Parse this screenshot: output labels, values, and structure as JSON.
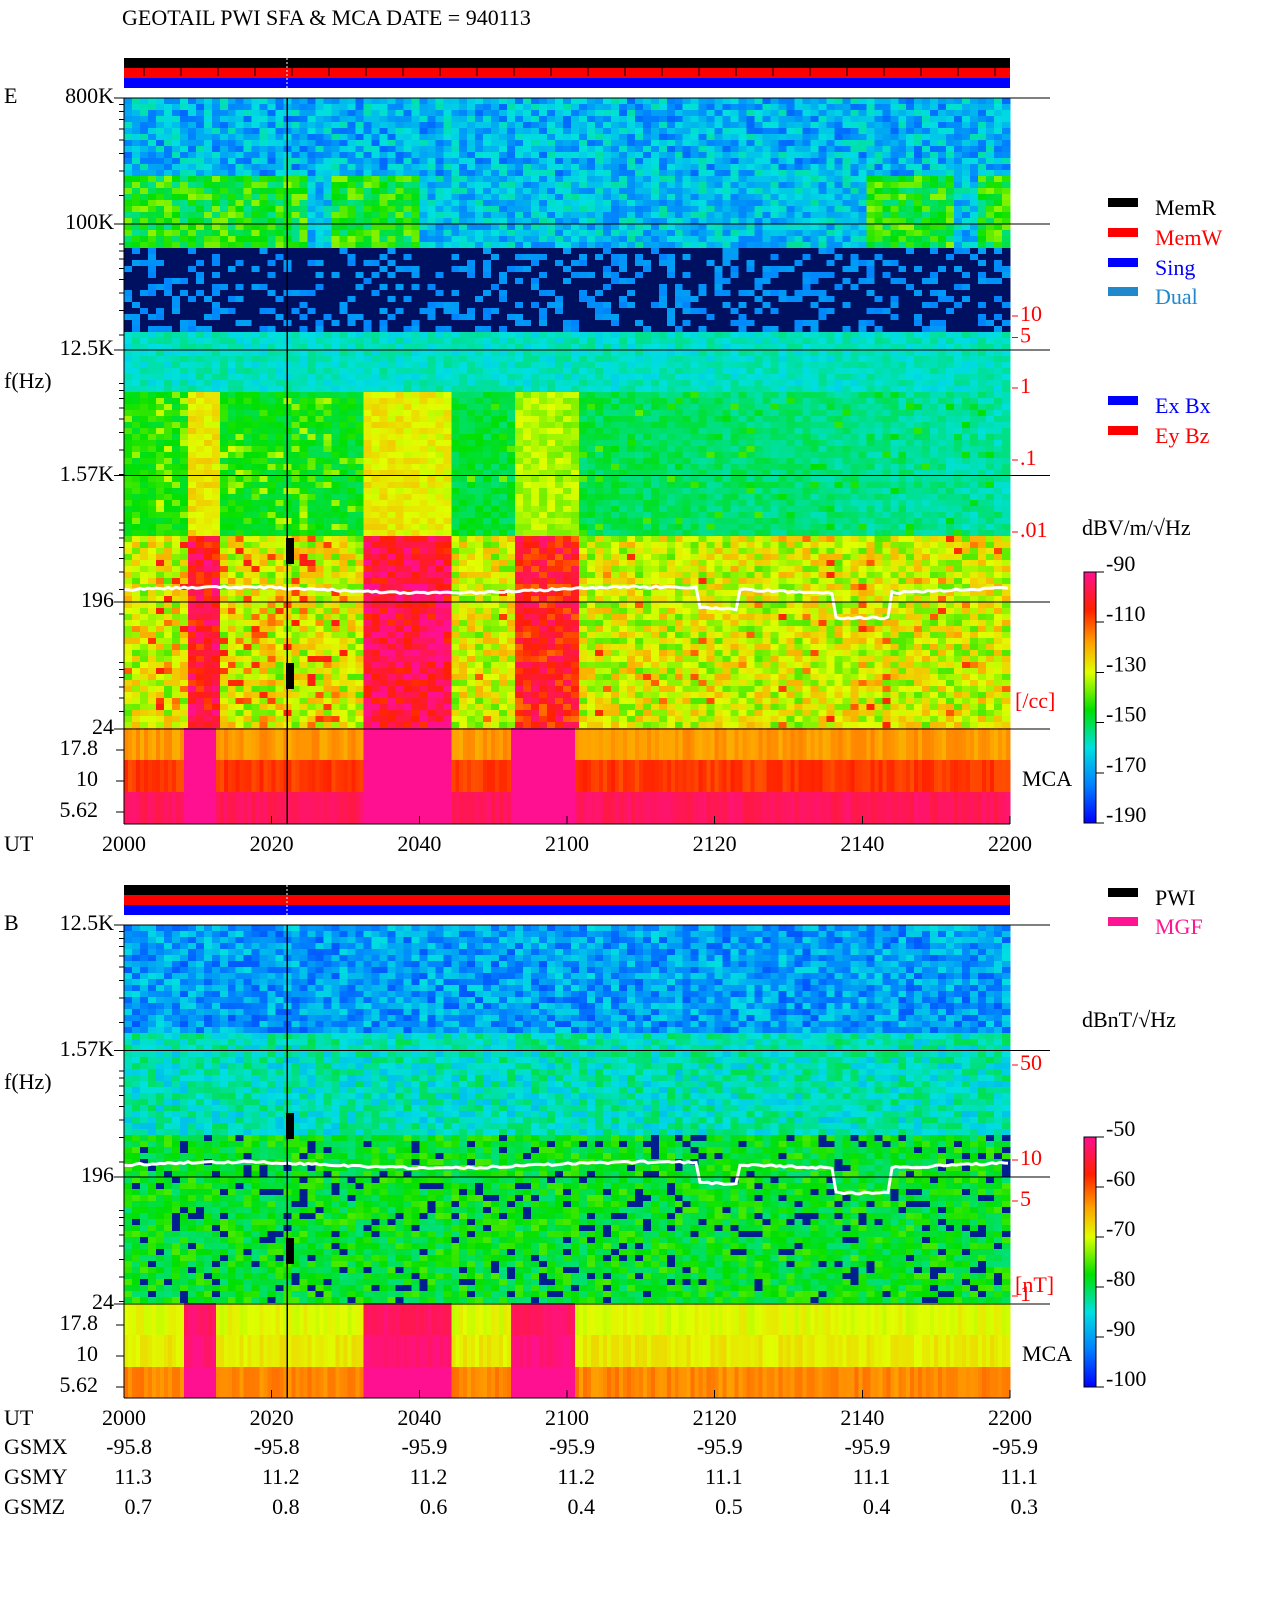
{
  "chart_data": {
    "type": "spectrogram",
    "title": "GEOTAIL  PWI SFA & MCA   DATE = 940113",
    "panels": [
      {
        "component": "E",
        "ylabel": "f(Hz)",
        "xlabel": "UT",
        "yticks": [
          {
            "value": 800000,
            "label": "800K"
          },
          {
            "value": 100000,
            "label": "100K"
          },
          {
            "value": 12500,
            "label": "12.5K"
          },
          {
            "value": 1570,
            "label": "1.57K"
          },
          196,
          24
        ],
        "mca_yticks": [
          17.8,
          10,
          5.62
        ],
        "xticks": [
          "2000",
          "2020",
          "2040",
          "2100",
          "2120",
          "2140",
          "2200"
        ],
        "right_scale": [
          10,
          5,
          1,
          {
            "value": 0.1,
            "label": ".1"
          },
          {
            "value": 0.01,
            "label": ".01"
          }
        ],
        "right_unit": "[/cc]",
        "mca_label": "MCA",
        "colorbar": {
          "unit": "dBV/m/√Hz",
          "clim": [
            -190,
            -90
          ],
          "ticks": [
            -90,
            -110,
            -130,
            -150,
            -170,
            -190
          ]
        },
        "legend": [
          {
            "name": "MemR",
            "color": "#000000"
          },
          {
            "name": "MemW",
            "color": "#ff0000"
          },
          {
            "name": "Sing",
            "color": "#0000ff"
          },
          {
            "name": "Dual",
            "color": "#2288cc"
          },
          {
            "name": "Ex Bx",
            "color": "#0000ff"
          },
          {
            "name": "Ey Bz",
            "color": "#ff0000"
          }
        ]
      },
      {
        "component": "B",
        "ylabel": "f(Hz)",
        "xlabel": "UT",
        "yticks": [
          {
            "value": 12500,
            "label": "12.5K"
          },
          {
            "value": 1570,
            "label": "1.57K"
          },
          196,
          24
        ],
        "mca_yticks": [
          17.8,
          10,
          5.62
        ],
        "xticks": [
          "2000",
          "2020",
          "2040",
          "2100",
          "2120",
          "2140",
          "2200"
        ],
        "right_scale": [
          50,
          10,
          5,
          1
        ],
        "right_unit": "[nT]",
        "mca_label": "MCA",
        "colorbar": {
          "unit": "dBnT/√Hz",
          "clim": [
            -100,
            -50
          ],
          "ticks": [
            -50,
            -60,
            -70,
            -80,
            -90,
            -100
          ]
        },
        "legend": [
          {
            "name": "PWI",
            "color": "#000000"
          },
          {
            "name": "MGF",
            "color": "#ff1493"
          }
        ]
      }
    ],
    "orbit": {
      "rows": [
        {
          "name": "GSMX",
          "values": [
            -95.8,
            -95.8,
            -95.9,
            -95.9,
            -95.9,
            -95.9,
            -95.9
          ]
        },
        {
          "name": "GSMY",
          "values": [
            11.3,
            11.2,
            11.2,
            11.2,
            11.1,
            11.1,
            11.1
          ]
        },
        {
          "name": "GSMZ",
          "values": [
            0.7,
            0.8,
            0.6,
            0.4,
            0.5,
            0.4,
            0.3
          ]
        }
      ]
    }
  }
}
